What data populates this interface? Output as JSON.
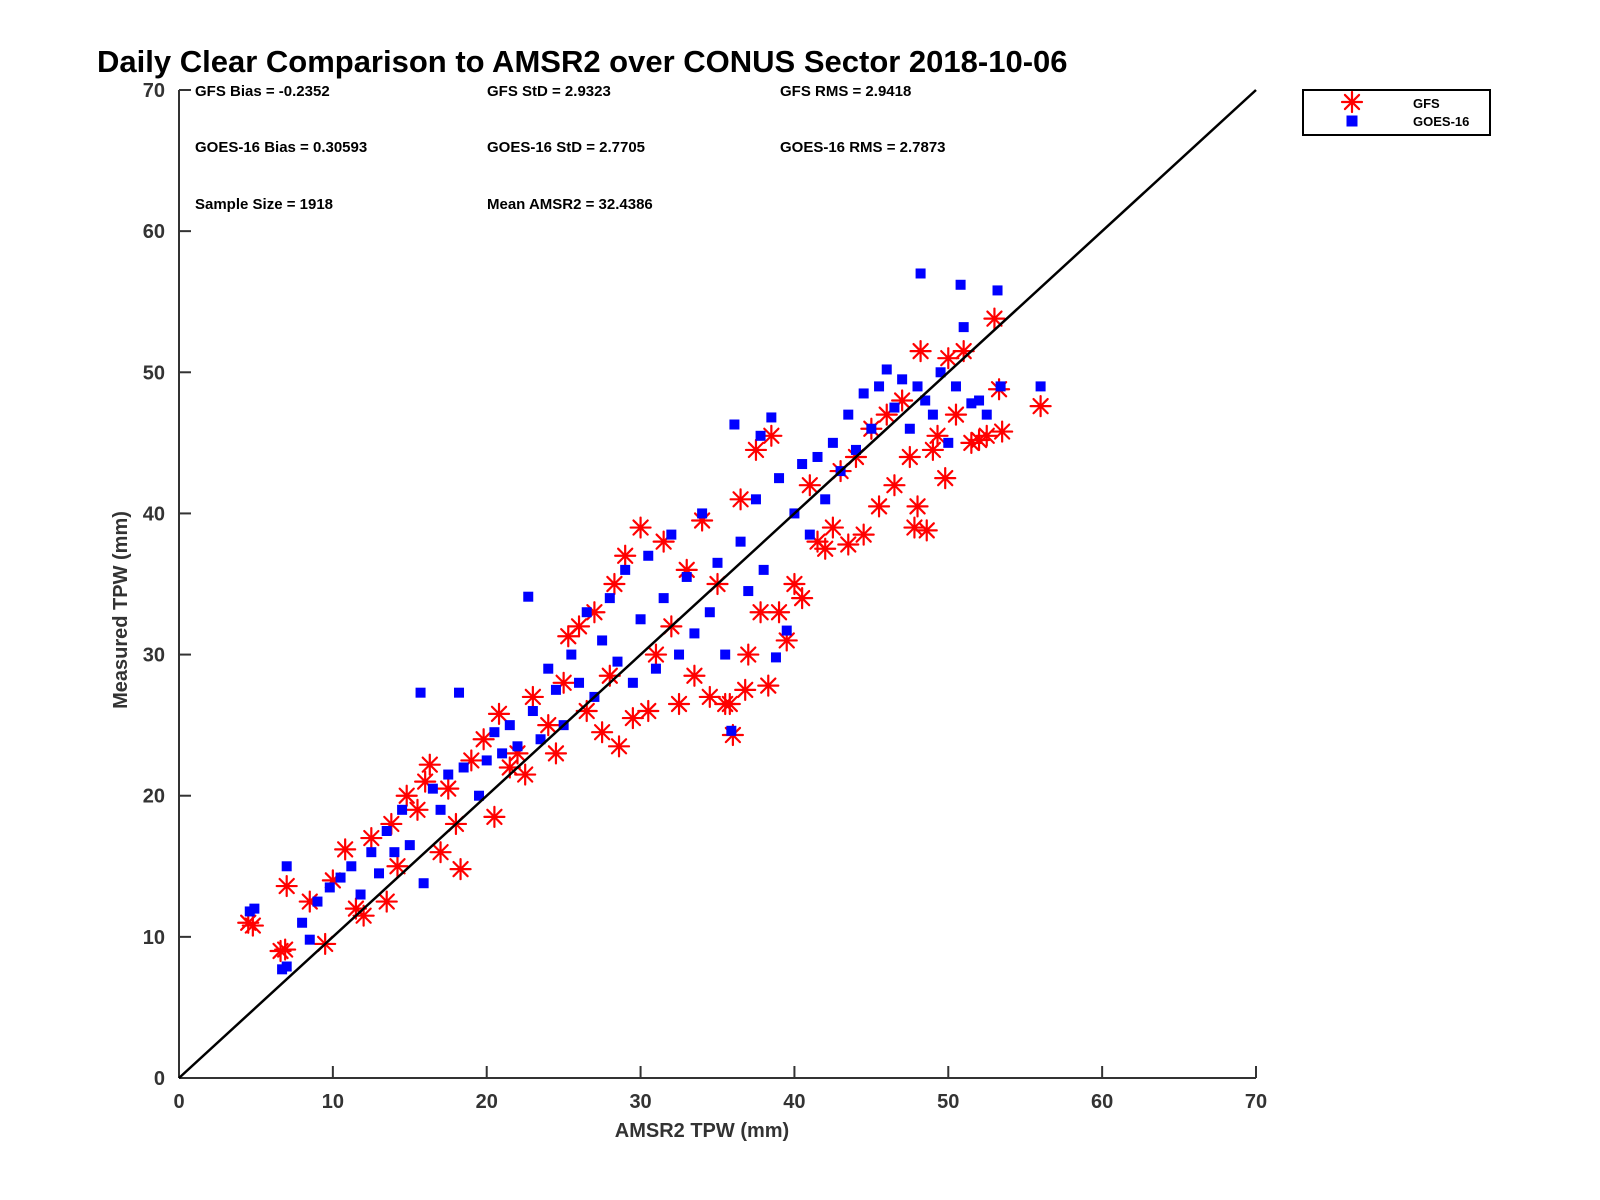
{
  "chart_data": {
    "type": "scatter",
    "title": "Daily Clear Comparison to AMSR2 over CONUS Sector 2018-10-06",
    "xlabel": "AMSR2 TPW (mm)",
    "ylabel": "Measured TPW (mm)",
    "xlim": [
      0,
      70
    ],
    "ylim": [
      0,
      70
    ],
    "xticks": [
      0,
      10,
      20,
      30,
      40,
      50,
      60,
      70
    ],
    "yticks": [
      0,
      10,
      20,
      30,
      40,
      50,
      60,
      70
    ],
    "xtick_labels": [
      "0",
      "10",
      "20",
      "30",
      "40",
      "50",
      "60",
      "70"
    ],
    "ytick_labels": [
      "0",
      "10",
      "20",
      "30",
      "40",
      "50",
      "60",
      "70"
    ],
    "grid": false,
    "legend_position": "outside-top-right",
    "reference_line": {
      "name": "1:1 line",
      "x": [
        0,
        70
      ],
      "y": [
        0,
        70
      ],
      "color": "#000000"
    },
    "stats": {
      "gfs_bias": "GFS Bias = -0.2352",
      "gfs_std": "GFS StD = 2.9323",
      "gfs_rms": "GFS RMS = 2.9418",
      "goes_bias": "GOES-16 Bias = 0.30593",
      "goes_std": "GOES-16 StD = 2.7705",
      "goes_rms": "GOES-16 RMS = 2.7873",
      "sample_size": "Sample Size = 1918",
      "mean_amsr2": "Mean AMSR2 = 32.4386"
    },
    "series": [
      {
        "name": "GFS",
        "marker": "asterisk",
        "color": "#ff0000",
        "points": [
          [
            4.5,
            11.0
          ],
          [
            4.8,
            10.8
          ],
          [
            6.6,
            9.0
          ],
          [
            6.9,
            9.1
          ],
          [
            7.0,
            13.6
          ],
          [
            8.5,
            12.5
          ],
          [
            9.5,
            9.5
          ],
          [
            10.0,
            14.0
          ],
          [
            10.8,
            16.2
          ],
          [
            11.5,
            12.0
          ],
          [
            12.0,
            11.5
          ],
          [
            12.5,
            17.0
          ],
          [
            13.5,
            12.5
          ],
          [
            13.8,
            18.0
          ],
          [
            14.2,
            15.0
          ],
          [
            14.8,
            20.0
          ],
          [
            15.5,
            19.0
          ],
          [
            16.0,
            21.0
          ],
          [
            16.3,
            22.2
          ],
          [
            17.0,
            16.0
          ],
          [
            17.5,
            20.5
          ],
          [
            18.0,
            18.0
          ],
          [
            18.3,
            14.8
          ],
          [
            19.0,
            22.5
          ],
          [
            19.8,
            24.0
          ],
          [
            20.5,
            18.5
          ],
          [
            20.8,
            25.8
          ],
          [
            21.5,
            22.0
          ],
          [
            22.0,
            23.0
          ],
          [
            22.5,
            21.5
          ],
          [
            23.0,
            27.0
          ],
          [
            24.0,
            25.0
          ],
          [
            24.5,
            23.0
          ],
          [
            25.0,
            28.0
          ],
          [
            25.3,
            31.3
          ],
          [
            26.0,
            32.0
          ],
          [
            26.5,
            26.0
          ],
          [
            27.0,
            33.0
          ],
          [
            27.5,
            24.5
          ],
          [
            28.0,
            28.5
          ],
          [
            28.3,
            35.0
          ],
          [
            28.6,
            23.5
          ],
          [
            29.0,
            37.0
          ],
          [
            29.5,
            25.5
          ],
          [
            30.0,
            39.0
          ],
          [
            30.5,
            26.0
          ],
          [
            31.0,
            30.0
          ],
          [
            31.5,
            38.0
          ],
          [
            32.0,
            32.0
          ],
          [
            32.5,
            26.5
          ],
          [
            33.0,
            36.0
          ],
          [
            33.5,
            28.5
          ],
          [
            34.0,
            39.5
          ],
          [
            34.5,
            27.0
          ],
          [
            35.0,
            35.0
          ],
          [
            35.5,
            26.5
          ],
          [
            35.8,
            26.5
          ],
          [
            36.0,
            24.3
          ],
          [
            36.5,
            41.0
          ],
          [
            36.8,
            27.5
          ],
          [
            37.0,
            30.0
          ],
          [
            37.5,
            44.5
          ],
          [
            37.8,
            33.0
          ],
          [
            38.3,
            27.8
          ],
          [
            38.5,
            45.5
          ],
          [
            39.0,
            33.0
          ],
          [
            39.5,
            31.0
          ],
          [
            40.0,
            35.0
          ],
          [
            40.5,
            34.0
          ],
          [
            41.0,
            42.0
          ],
          [
            41.5,
            38.0
          ],
          [
            42.0,
            37.5
          ],
          [
            42.5,
            39.0
          ],
          [
            43.0,
            43.0
          ],
          [
            43.5,
            37.8
          ],
          [
            44.0,
            44.0
          ],
          [
            44.5,
            38.5
          ],
          [
            45.0,
            46.0
          ],
          [
            45.5,
            40.5
          ],
          [
            46.0,
            47.0
          ],
          [
            46.5,
            42.0
          ],
          [
            47.0,
            48.0
          ],
          [
            47.5,
            44.0
          ],
          [
            47.8,
            39.0
          ],
          [
            48.0,
            40.5
          ],
          [
            48.2,
            51.5
          ],
          [
            48.6,
            38.8
          ],
          [
            49.0,
            44.5
          ],
          [
            49.3,
            45.5
          ],
          [
            49.8,
            42.5
          ],
          [
            50.0,
            51.0
          ],
          [
            50.5,
            47.0
          ],
          [
            51.0,
            51.5
          ],
          [
            51.5,
            45.0
          ],
          [
            52.0,
            45.2
          ],
          [
            52.5,
            45.5
          ],
          [
            53.0,
            53.8
          ],
          [
            53.3,
            48.8
          ],
          [
            53.5,
            45.8
          ],
          [
            56.0,
            47.6
          ]
        ]
      },
      {
        "name": "GOES-16",
        "marker": "square",
        "color": "#0000ff",
        "points": [
          [
            4.6,
            11.8
          ],
          [
            4.9,
            12.0
          ],
          [
            6.7,
            7.7
          ],
          [
            7.0,
            7.9
          ],
          [
            7.0,
            15.0
          ],
          [
            8.0,
            11.0
          ],
          [
            8.5,
            9.8
          ],
          [
            9.0,
            12.5
          ],
          [
            9.8,
            13.5
          ],
          [
            10.5,
            14.2
          ],
          [
            11.2,
            15.0
          ],
          [
            11.8,
            13.0
          ],
          [
            12.5,
            16.0
          ],
          [
            13.0,
            14.5
          ],
          [
            13.5,
            17.5
          ],
          [
            14.0,
            16.0
          ],
          [
            14.5,
            19.0
          ],
          [
            15.0,
            16.5
          ],
          [
            15.7,
            27.3
          ],
          [
            15.9,
            13.8
          ],
          [
            16.5,
            20.5
          ],
          [
            17.0,
            19.0
          ],
          [
            17.5,
            21.5
          ],
          [
            18.2,
            27.3
          ],
          [
            18.5,
            22.0
          ],
          [
            19.5,
            20.0
          ],
          [
            20.0,
            22.5
          ],
          [
            20.5,
            24.5
          ],
          [
            21.0,
            23.0
          ],
          [
            21.5,
            25.0
          ],
          [
            22.0,
            23.5
          ],
          [
            22.7,
            34.1
          ],
          [
            23.0,
            26.0
          ],
          [
            23.5,
            24.0
          ],
          [
            24.0,
            29.0
          ],
          [
            24.5,
            27.5
          ],
          [
            25.0,
            25.0
          ],
          [
            25.5,
            30.0
          ],
          [
            26.0,
            28.0
          ],
          [
            26.5,
            33.0
          ],
          [
            27.0,
            27.0
          ],
          [
            27.5,
            31.0
          ],
          [
            28.0,
            34.0
          ],
          [
            28.5,
            29.5
          ],
          [
            29.0,
            36.0
          ],
          [
            29.5,
            28.0
          ],
          [
            30.0,
            32.5
          ],
          [
            30.5,
            37.0
          ],
          [
            31.0,
            29.0
          ],
          [
            31.5,
            34.0
          ],
          [
            32.0,
            38.5
          ],
          [
            32.5,
            30.0
          ],
          [
            33.0,
            35.5
          ],
          [
            33.5,
            31.5
          ],
          [
            34.0,
            40.0
          ],
          [
            34.5,
            33.0
          ],
          [
            35.0,
            36.5
          ],
          [
            35.5,
            30.0
          ],
          [
            35.9,
            24.6
          ],
          [
            36.1,
            46.3
          ],
          [
            36.5,
            38.0
          ],
          [
            37.0,
            34.5
          ],
          [
            37.5,
            41.0
          ],
          [
            37.8,
            45.5
          ],
          [
            38.0,
            36.0
          ],
          [
            38.5,
            46.8
          ],
          [
            38.8,
            29.8
          ],
          [
            39.0,
            42.5
          ],
          [
            39.5,
            31.7
          ],
          [
            40.0,
            40.0
          ],
          [
            40.5,
            43.5
          ],
          [
            41.0,
            38.5
          ],
          [
            41.5,
            44.0
          ],
          [
            42.0,
            41.0
          ],
          [
            42.5,
            45.0
          ],
          [
            43.0,
            43.0
          ],
          [
            43.5,
            47.0
          ],
          [
            44.0,
            44.5
          ],
          [
            44.5,
            48.5
          ],
          [
            45.0,
            46.0
          ],
          [
            45.5,
            49.0
          ],
          [
            46.0,
            50.2
          ],
          [
            46.5,
            47.5
          ],
          [
            47.0,
            49.5
          ],
          [
            47.5,
            46.0
          ],
          [
            48.0,
            49.0
          ],
          [
            48.2,
            57.0
          ],
          [
            48.5,
            48.0
          ],
          [
            49.0,
            47.0
          ],
          [
            49.5,
            50.0
          ],
          [
            50.0,
            45.0
          ],
          [
            50.5,
            49.0
          ],
          [
            50.8,
            56.2
          ],
          [
            51.0,
            53.2
          ],
          [
            51.5,
            47.8
          ],
          [
            52.0,
            48.0
          ],
          [
            52.5,
            47.0
          ],
          [
            53.2,
            55.8
          ],
          [
            53.4,
            49.0
          ],
          [
            56.0,
            49.0
          ]
        ]
      }
    ],
    "legend": [
      {
        "label": "GFS",
        "marker": "asterisk",
        "color": "#ff0000"
      },
      {
        "label": "GOES-16",
        "marker": "square",
        "color": "#0000ff"
      }
    ]
  }
}
